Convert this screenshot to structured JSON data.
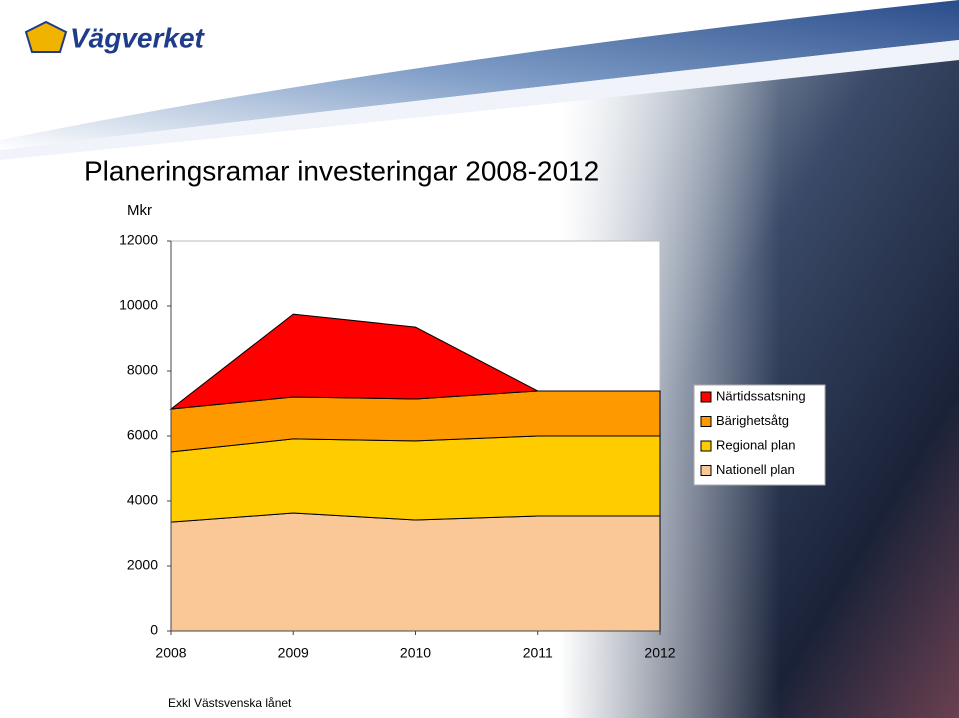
{
  "logo": "Vägverket",
  "chart_data": {
    "type": "stacked-area",
    "title": "Planeringsramar investeringar 2008-2012",
    "y_label": "Mkr",
    "footnote": "Exkl Västsvenska lånet",
    "x": [
      2008,
      2009,
      2010,
      2011,
      2012
    ],
    "ylim": [
      0,
      12000
    ],
    "yticks": [
      0,
      2000,
      4000,
      6000,
      8000,
      10000,
      12000
    ],
    "legend_position": "right",
    "series": [
      {
        "name": "Nationell plan",
        "color": "#fac896",
        "values": [
          3350,
          3630,
          3415,
          3540,
          3540
        ]
      },
      {
        "name": "Regional plan",
        "color": "#ffcc00",
        "values": [
          2160,
          2280,
          2435,
          2460,
          2460
        ]
      },
      {
        "name": "Bärighetsåtg",
        "color": "#ff9900",
        "values": [
          1320,
          1290,
          1290,
          1385,
          1385
        ]
      },
      {
        "name": "Närtidssatsning",
        "color": "#ff0000",
        "values": [
          0,
          2550,
          2210,
          0,
          0
        ]
      }
    ]
  }
}
